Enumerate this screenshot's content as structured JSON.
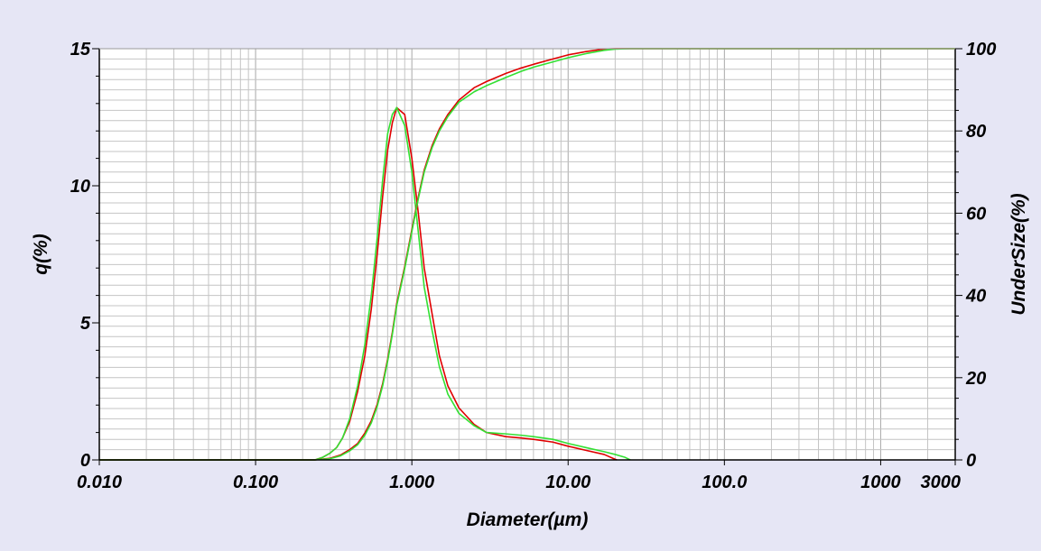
{
  "chart_data": {
    "type": "line",
    "xlabel": "Diameter(µm)",
    "ylabel_left": "q(%)",
    "ylabel_right": "UnderSize(%)",
    "x_scale": "log",
    "xlim": [
      0.01,
      3000
    ],
    "ylim_left": [
      0,
      15
    ],
    "ylim_right": [
      0,
      100
    ],
    "x_ticks": [
      {
        "value": 0.01,
        "label": "0.010"
      },
      {
        "value": 0.1,
        "label": "0.100"
      },
      {
        "value": 1,
        "label": "1.000"
      },
      {
        "value": 10,
        "label": "10.00"
      },
      {
        "value": 100,
        "label": "100.0"
      },
      {
        "value": 1000,
        "label": "1000"
      },
      {
        "value": 3000,
        "label": "3000"
      }
    ],
    "y_left_ticks": [
      {
        "value": 0,
        "label": "0"
      },
      {
        "value": 5,
        "label": "5"
      },
      {
        "value": 10,
        "label": "10"
      },
      {
        "value": 15,
        "label": "15"
      }
    ],
    "y_right_ticks": [
      {
        "value": 0,
        "label": "0"
      },
      {
        "value": 20,
        "label": "20"
      },
      {
        "value": 40,
        "label": "40"
      },
      {
        "value": 60,
        "label": "60"
      },
      {
        "value": 80,
        "label": "80"
      },
      {
        "value": 100,
        "label": "100"
      }
    ],
    "grid": true,
    "legend": "none",
    "series": [
      {
        "color": "#e00000",
        "axis": "left",
        "kind": "frequency",
        "points": [
          [
            0.01,
            0
          ],
          [
            0.24,
            0
          ],
          [
            0.27,
            0.1
          ],
          [
            0.3,
            0.25
          ],
          [
            0.33,
            0.45
          ],
          [
            0.36,
            0.8
          ],
          [
            0.4,
            1.4
          ],
          [
            0.45,
            2.5
          ],
          [
            0.5,
            3.8
          ],
          [
            0.55,
            5.5
          ],
          [
            0.6,
            7.5
          ],
          [
            0.65,
            9.6
          ],
          [
            0.7,
            11.3
          ],
          [
            0.75,
            12.3
          ],
          [
            0.8,
            12.85
          ],
          [
            0.9,
            12.6
          ],
          [
            1.0,
            11.0
          ],
          [
            1.1,
            9.0
          ],
          [
            1.2,
            7.0
          ],
          [
            1.35,
            5.3
          ],
          [
            1.5,
            3.8
          ],
          [
            1.7,
            2.7
          ],
          [
            2.0,
            1.9
          ],
          [
            2.5,
            1.3
          ],
          [
            3.0,
            1.0
          ],
          [
            4.0,
            0.85
          ],
          [
            5.0,
            0.8
          ],
          [
            6.0,
            0.75
          ],
          [
            8.0,
            0.65
          ],
          [
            10.0,
            0.5
          ],
          [
            13.0,
            0.35
          ],
          [
            17.0,
            0.2
          ],
          [
            19.5,
            0.05
          ],
          [
            20.5,
            0
          ]
        ]
      },
      {
        "color": "#33e033",
        "axis": "left",
        "kind": "frequency",
        "points": [
          [
            0.01,
            0
          ],
          [
            0.24,
            0
          ],
          [
            0.27,
            0.1
          ],
          [
            0.3,
            0.25
          ],
          [
            0.33,
            0.45
          ],
          [
            0.36,
            0.8
          ],
          [
            0.4,
            1.5
          ],
          [
            0.45,
            2.7
          ],
          [
            0.5,
            4.2
          ],
          [
            0.55,
            6.0
          ],
          [
            0.6,
            8.1
          ],
          [
            0.65,
            10.2
          ],
          [
            0.7,
            11.9
          ],
          [
            0.75,
            12.6
          ],
          [
            0.8,
            12.85
          ],
          [
            0.9,
            12.2
          ],
          [
            1.0,
            10.5
          ],
          [
            1.1,
            8.3
          ],
          [
            1.2,
            6.3
          ],
          [
            1.35,
            4.7
          ],
          [
            1.5,
            3.4
          ],
          [
            1.7,
            2.4
          ],
          [
            2.0,
            1.7
          ],
          [
            2.5,
            1.25
          ],
          [
            3.0,
            1.0
          ],
          [
            4.0,
            0.95
          ],
          [
            5.0,
            0.9
          ],
          [
            6.0,
            0.85
          ],
          [
            8.0,
            0.75
          ],
          [
            10.0,
            0.6
          ],
          [
            13.0,
            0.45
          ],
          [
            17.0,
            0.3
          ],
          [
            20.0,
            0.2
          ],
          [
            23.0,
            0.1
          ],
          [
            25.0,
            0
          ]
        ]
      },
      {
        "color": "#e00000",
        "axis": "right",
        "kind": "cumulative",
        "points": [
          [
            0.01,
            0
          ],
          [
            0.24,
            0
          ],
          [
            0.3,
            0.4
          ],
          [
            0.35,
            1.2
          ],
          [
            0.4,
            2.5
          ],
          [
            0.45,
            4.0
          ],
          [
            0.5,
            6.5
          ],
          [
            0.55,
            9.5
          ],
          [
            0.6,
            13.5
          ],
          [
            0.65,
            18.5
          ],
          [
            0.7,
            24.5
          ],
          [
            0.75,
            31.0
          ],
          [
            0.8,
            38.0
          ],
          [
            0.9,
            47.0
          ],
          [
            1.0,
            56.0
          ],
          [
            1.1,
            64.0
          ],
          [
            1.2,
            70.5
          ],
          [
            1.35,
            76.5
          ],
          [
            1.5,
            80.5
          ],
          [
            1.7,
            84.0
          ],
          [
            2.0,
            87.5
          ],
          [
            2.5,
            90.5
          ],
          [
            3.0,
            92.0
          ],
          [
            4.0,
            94.0
          ],
          [
            5.0,
            95.3
          ],
          [
            6.0,
            96.2
          ],
          [
            8.0,
            97.5
          ],
          [
            10.0,
            98.5
          ],
          [
            13.0,
            99.3
          ],
          [
            17.0,
            99.9
          ],
          [
            20.0,
            100
          ],
          [
            3000,
            100
          ]
        ]
      },
      {
        "color": "#33e033",
        "axis": "right",
        "kind": "cumulative",
        "points": [
          [
            0.01,
            0
          ],
          [
            0.24,
            0
          ],
          [
            0.3,
            0.3
          ],
          [
            0.35,
            1.0
          ],
          [
            0.4,
            2.2
          ],
          [
            0.45,
            3.7
          ],
          [
            0.5,
            6.0
          ],
          [
            0.55,
            9.0
          ],
          [
            0.6,
            13.0
          ],
          [
            0.65,
            18.0
          ],
          [
            0.7,
            24.0
          ],
          [
            0.75,
            30.5
          ],
          [
            0.8,
            37.5
          ],
          [
            0.9,
            46.5
          ],
          [
            1.0,
            55.5
          ],
          [
            1.1,
            63.5
          ],
          [
            1.2,
            70.0
          ],
          [
            1.35,
            76.0
          ],
          [
            1.5,
            80.0
          ],
          [
            1.7,
            83.5
          ],
          [
            2.0,
            87.0
          ],
          [
            2.5,
            89.5
          ],
          [
            3.0,
            91.0
          ],
          [
            4.0,
            93.0
          ],
          [
            5.0,
            94.5
          ],
          [
            6.0,
            95.5
          ],
          [
            8.0,
            96.8
          ],
          [
            10.0,
            97.8
          ],
          [
            13.0,
            98.8
          ],
          [
            17.0,
            99.6
          ],
          [
            20.0,
            99.9
          ],
          [
            25.0,
            100
          ],
          [
            3000,
            100
          ]
        ]
      }
    ]
  }
}
